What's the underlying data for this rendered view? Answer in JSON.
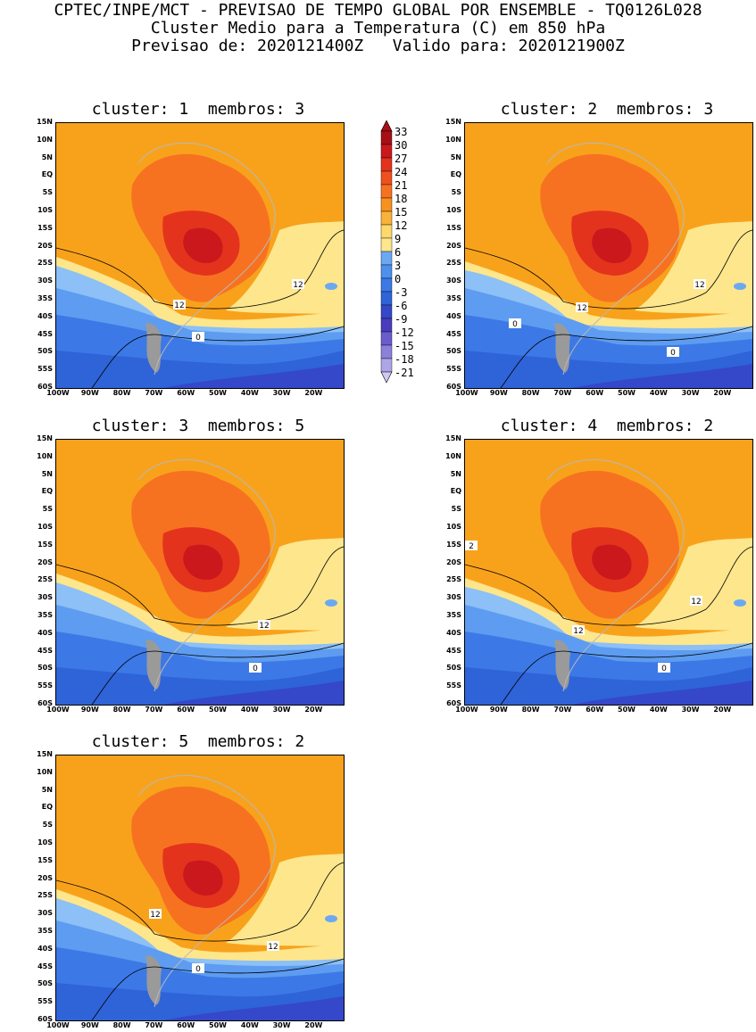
{
  "header": {
    "line1": "CPTEC/INPE/MCT - PREVISAO DE TEMPO GLOBAL POR ENSEMBLE - TQ0126L028",
    "line2": "Cluster Medio para a Temperatura (C) em 850 hPa",
    "line3": "Previsao de: 2020121400Z   Valido para: 2020121900Z"
  },
  "panels": [
    {
      "title": "cluster: 1  membros: 3"
    },
    {
      "title": "cluster: 2  membros: 3"
    },
    {
      "title": "cluster: 3  membros: 5"
    },
    {
      "title": "cluster: 4  membros: 2"
    },
    {
      "title": "cluster: 5  membros: 2"
    }
  ],
  "lat_labels": [
    "15N",
    "10N",
    "5N",
    "EQ",
    "5S",
    "10S",
    "15S",
    "20S",
    "25S",
    "30S",
    "35S",
    "40S",
    "45S",
    "50S",
    "55S",
    "60S"
  ],
  "lon_labels": [
    "100W",
    "90W",
    "80W",
    "70W",
    "60W",
    "50W",
    "40W",
    "30W",
    "20W"
  ],
  "colorbar": {
    "labels": [
      "33",
      "30",
      "27",
      "24",
      "21",
      "18",
      "15",
      "12",
      "9",
      "6",
      "3",
      "0",
      "-3",
      "-6",
      "-9",
      "-12",
      "-15",
      "-18",
      "-21"
    ],
    "colors": [
      "#a50f15",
      "#cb181d",
      "#e3331d",
      "#f0501e",
      "#f77220",
      "#f8921f",
      "#f9b23a",
      "#fdd86a",
      "#fde68c",
      "#6aa9f2",
      "#4e8ff0",
      "#3c79e6",
      "#2f63d8",
      "#3448c9",
      "#4a3dbd",
      "#6a5ccc",
      "#8b80da",
      "#ada6e6",
      "#cfcaf0"
    ]
  },
  "contour_labels": {
    "p1": [
      "12",
      "12",
      "0"
    ],
    "p2": [
      "12",
      "12",
      "0",
      "0"
    ],
    "p3": [
      "12",
      "0"
    ],
    "p4": [
      "12",
      "12",
      "0",
      "2"
    ],
    "p5": [
      "12",
      "12",
      "0"
    ]
  }
}
